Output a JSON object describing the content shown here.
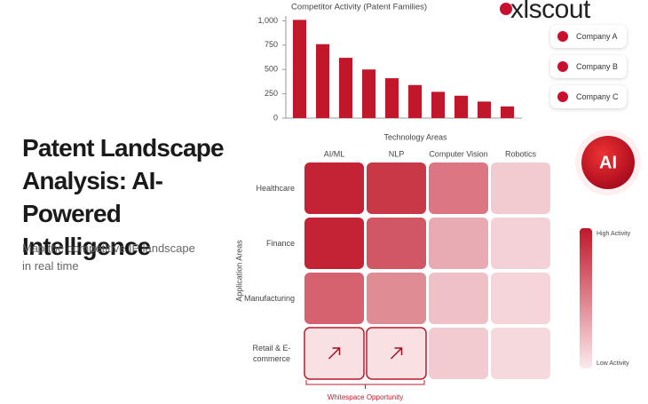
{
  "header": {
    "title": "Patent Landscape Analysis: AI-Powered Intelligence",
    "subtitle": "Map the competitive IP landscape in real time",
    "logo": "xlscout",
    "badge": "AI"
  },
  "companies": {
    "names": [
      "Company A",
      "Company B",
      "Company C"
    ],
    "color": "#c8102e"
  },
  "chart_data": [
    {
      "type": "bar",
      "title": "Competitor Activity (Patent Families)",
      "x_label": "Technology Areas",
      "categories": [
        null,
        null,
        null,
        null,
        null,
        null,
        null,
        null,
        null,
        null
      ],
      "values": [
        1010,
        760,
        620,
        500,
        410,
        340,
        270,
        230,
        170,
        120
      ],
      "color": "#c0182a",
      "ylim": [
        0,
        1050
      ],
      "yticks": [
        0,
        250,
        500,
        750,
        {
          "value": 1000,
          "label": "1,000"
        }
      ]
    },
    {
      "type": "heatmap",
      "y_label": "Application Areas",
      "columns": [
        "AI/ML",
        "NLP",
        "Computer Vision",
        "Robotics"
      ],
      "rows": [
        "Healthcare",
        "Finance",
        "Manufacturing",
        "Retail & E-commerce"
      ],
      "values": [
        [
          0.95,
          0.85,
          0.55,
          0.15
        ],
        [
          0.95,
          0.7,
          0.3,
          0.12
        ],
        [
          0.65,
          0.45,
          0.2,
          0.1
        ],
        [
          0.05,
          0.05,
          0.15,
          0.08
        ]
      ],
      "color_low": "#fbeaed",
      "color_high": "#c0182a",
      "colorbar": {
        "high": "High Activity",
        "low": "Low Activity"
      },
      "annotation": {
        "text": "Whitespace Opportunity",
        "row": 3,
        "columns": [
          0,
          1
        ]
      }
    }
  ]
}
